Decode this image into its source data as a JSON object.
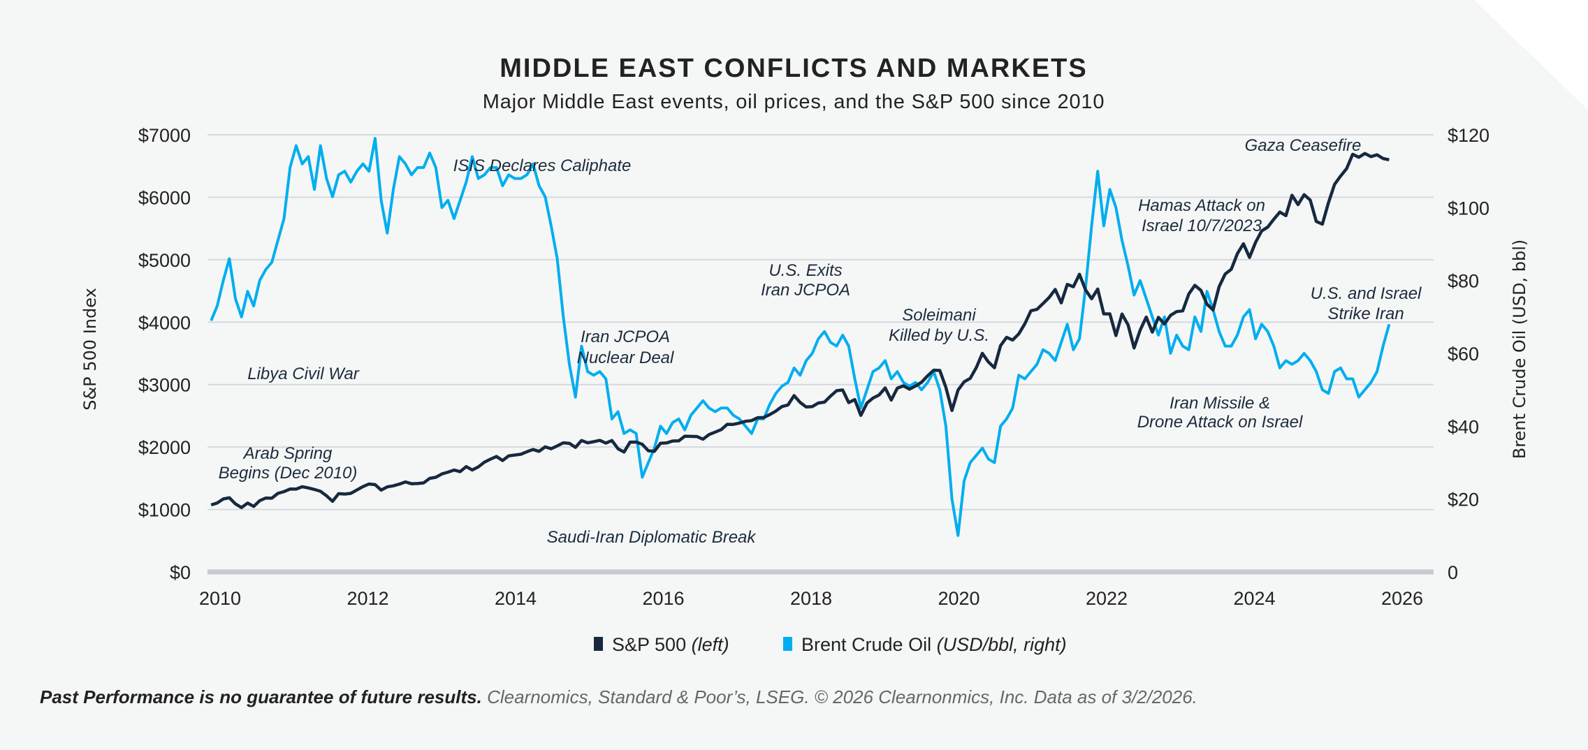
{
  "chart_data": {
    "type": "line",
    "title": "MIDDLE EAST CONFLICTS AND MARKETS",
    "subtitle": "Major Middle East events, oil prices, and the S&P 500 since 2010",
    "ylabel_left": "S&P 500 Index",
    "ylabel_right": "Brent Crude Oil (USD, bbl)",
    "ylim_left": [
      0,
      7000
    ],
    "ylim_right": [
      0,
      120
    ],
    "yticks_left": [
      "$0",
      "$1000",
      "$2000",
      "$3000",
      "$4000",
      "$5000",
      "$6000",
      "$7000"
    ],
    "yticks_right": [
      "0",
      "$20",
      "$40",
      "$60",
      "$80",
      "$100",
      "$120"
    ],
    "xticks": [
      "2010",
      "2012",
      "2014",
      "2016",
      "2018",
      "2020",
      "2022",
      "2024",
      "2026"
    ],
    "grid": true,
    "legend_placement": "bottom",
    "x_start": 2010.0,
    "x_step_months": 1,
    "series": [
      {
        "name": "S&P 500",
        "name_note": "(left)",
        "axis": "left",
        "color": "#17293f",
        "values": [
          1074,
          1104,
          1169,
          1187,
          1089,
          1031,
          1102,
          1049,
          1141,
          1183,
          1181,
          1258,
          1286,
          1327,
          1326,
          1364,
          1345,
          1321,
          1292,
          1219,
          1131,
          1253,
          1247,
          1258,
          1312,
          1366,
          1408,
          1398,
          1310,
          1362,
          1379,
          1407,
          1441,
          1412,
          1416,
          1426,
          1498,
          1515,
          1569,
          1598,
          1631,
          1606,
          1686,
          1633,
          1682,
          1757,
          1806,
          1848,
          1783,
          1859,
          1872,
          1884,
          1924,
          1960,
          1931,
          2003,
          1972,
          2018,
          2068,
          2059,
          1995,
          2105,
          2068,
          2086,
          2107,
          2063,
          2104,
          1972,
          1920,
          2079,
          2080,
          2044,
          1940,
          1932,
          2060,
          2065,
          2097,
          2099,
          2174,
          2171,
          2168,
          2126,
          2199,
          2239,
          2279,
          2364,
          2363,
          2384,
          2412,
          2423,
          2470,
          2472,
          2519,
          2575,
          2648,
          2674,
          2824,
          2714,
          2641,
          2648,
          2705,
          2718,
          2816,
          2902,
          2914,
          2712,
          2760,
          2507,
          2704,
          2784,
          2834,
          2946,
          2752,
          2942,
          2980,
          2926,
          2977,
          3038,
          3141,
          3231,
          3226,
          2954,
          2585,
          2912,
          3044,
          3100,
          3271,
          3500,
          3363,
          3270,
          3622,
          3756,
          3714,
          3811,
          3973,
          4181,
          4204,
          4298,
          4395,
          4523,
          4308,
          4605,
          4567,
          4766,
          4516,
          4374,
          4530,
          4132,
          4132,
          3785,
          4130,
          3955,
          3586,
          3872,
          4080,
          3840,
          4077,
          3970,
          4109,
          4169,
          4180,
          4450,
          4589,
          4508,
          4288,
          4194,
          4568,
          4770,
          4846,
          5096,
          5254,
          5036,
          5278,
          5460,
          5522,
          5648,
          5762,
          5705,
          6032,
          5882,
          6041,
          5955,
          5612,
          5569,
          5912,
          6205,
          6339,
          6460,
          6688,
          6640,
          6700,
          6650,
          6680,
          6620,
          6600
        ]
      },
      {
        "name": "Brent Crude Oil",
        "name_note": "(USD/bbl, right)",
        "axis": "right",
        "color": "#00aeef",
        "values": [
          69,
          73,
          80,
          86,
          75,
          70,
          77,
          73,
          80,
          83,
          85,
          91,
          97,
          111,
          117,
          112,
          114,
          105,
          117,
          108,
          103,
          109,
          110,
          107,
          110,
          112,
          110,
          119,
          102,
          93,
          105,
          114,
          112,
          109,
          111,
          111,
          115,
          111,
          100,
          102,
          97,
          102,
          107,
          114,
          108,
          109,
          111,
          111,
          106,
          109,
          108,
          108,
          109,
          112,
          106,
          103,
          95,
          86,
          70,
          57,
          48,
          62,
          55,
          54,
          55,
          53,
          42,
          44,
          38,
          39,
          38,
          26,
          30,
          34,
          40,
          38,
          41,
          42,
          39,
          43,
          45,
          47,
          45,
          44,
          45,
          45,
          43,
          42,
          40,
          38,
          42,
          42,
          46,
          49,
          51,
          52,
          56,
          54,
          58,
          60,
          64,
          66,
          63,
          62,
          65,
          62,
          53,
          45,
          50,
          55,
          56,
          58,
          53,
          55,
          52,
          51,
          52,
          50,
          52,
          55,
          50,
          40,
          20,
          10,
          25,
          30,
          32,
          34,
          31,
          30,
          40,
          42,
          45,
          54,
          53,
          55,
          57,
          61,
          60,
          58,
          63,
          68,
          61,
          64,
          78,
          95,
          110,
          95,
          105,
          100,
          91,
          84,
          76,
          80,
          75,
          70,
          65,
          70,
          60,
          65,
          62,
          61,
          70,
          66,
          77,
          72,
          66,
          62,
          62,
          65,
          70,
          72,
          64,
          68,
          66,
          62,
          56,
          58,
          57,
          58,
          60,
          58,
          55,
          50,
          49,
          55,
          56,
          53,
          53,
          48,
          50,
          52,
          55,
          62,
          68
        ]
      }
    ],
    "annotations": [
      {
        "lines": [
          "ISIS Declares Caliphate"
        ]
      },
      {
        "lines": [
          "Libya Civil War"
        ]
      },
      {
        "lines": [
          "Iran JCPOA",
          "Nuclear Deal"
        ]
      },
      {
        "lines": [
          "U.S. Exits",
          "Iran JCPOA"
        ]
      },
      {
        "lines": [
          "Soleimani",
          "Killed by U.S."
        ]
      },
      {
        "lines": [
          "Arab Spring",
          "Begins (Dec 2010)"
        ]
      },
      {
        "lines": [
          "Saudi-Iran Diplomatic Break"
        ]
      },
      {
        "lines": [
          "Hamas Attack on",
          "Israel 10/7/2023"
        ]
      },
      {
        "lines": [
          "Gaza Ceasefire"
        ]
      },
      {
        "lines": [
          "U.S. and Israel",
          "Strike Iran"
        ]
      },
      {
        "lines": [
          "Iran Missile &",
          "Drone Attack on Israel"
        ]
      }
    ]
  },
  "footer": {
    "disclaimer": "Past Performance is no guarantee of future results.",
    "source": "Clearnomics, Standard & Poor’s, LSEG. © 2026 Clearnonmics, Inc. Data as of 3/2/2026."
  }
}
